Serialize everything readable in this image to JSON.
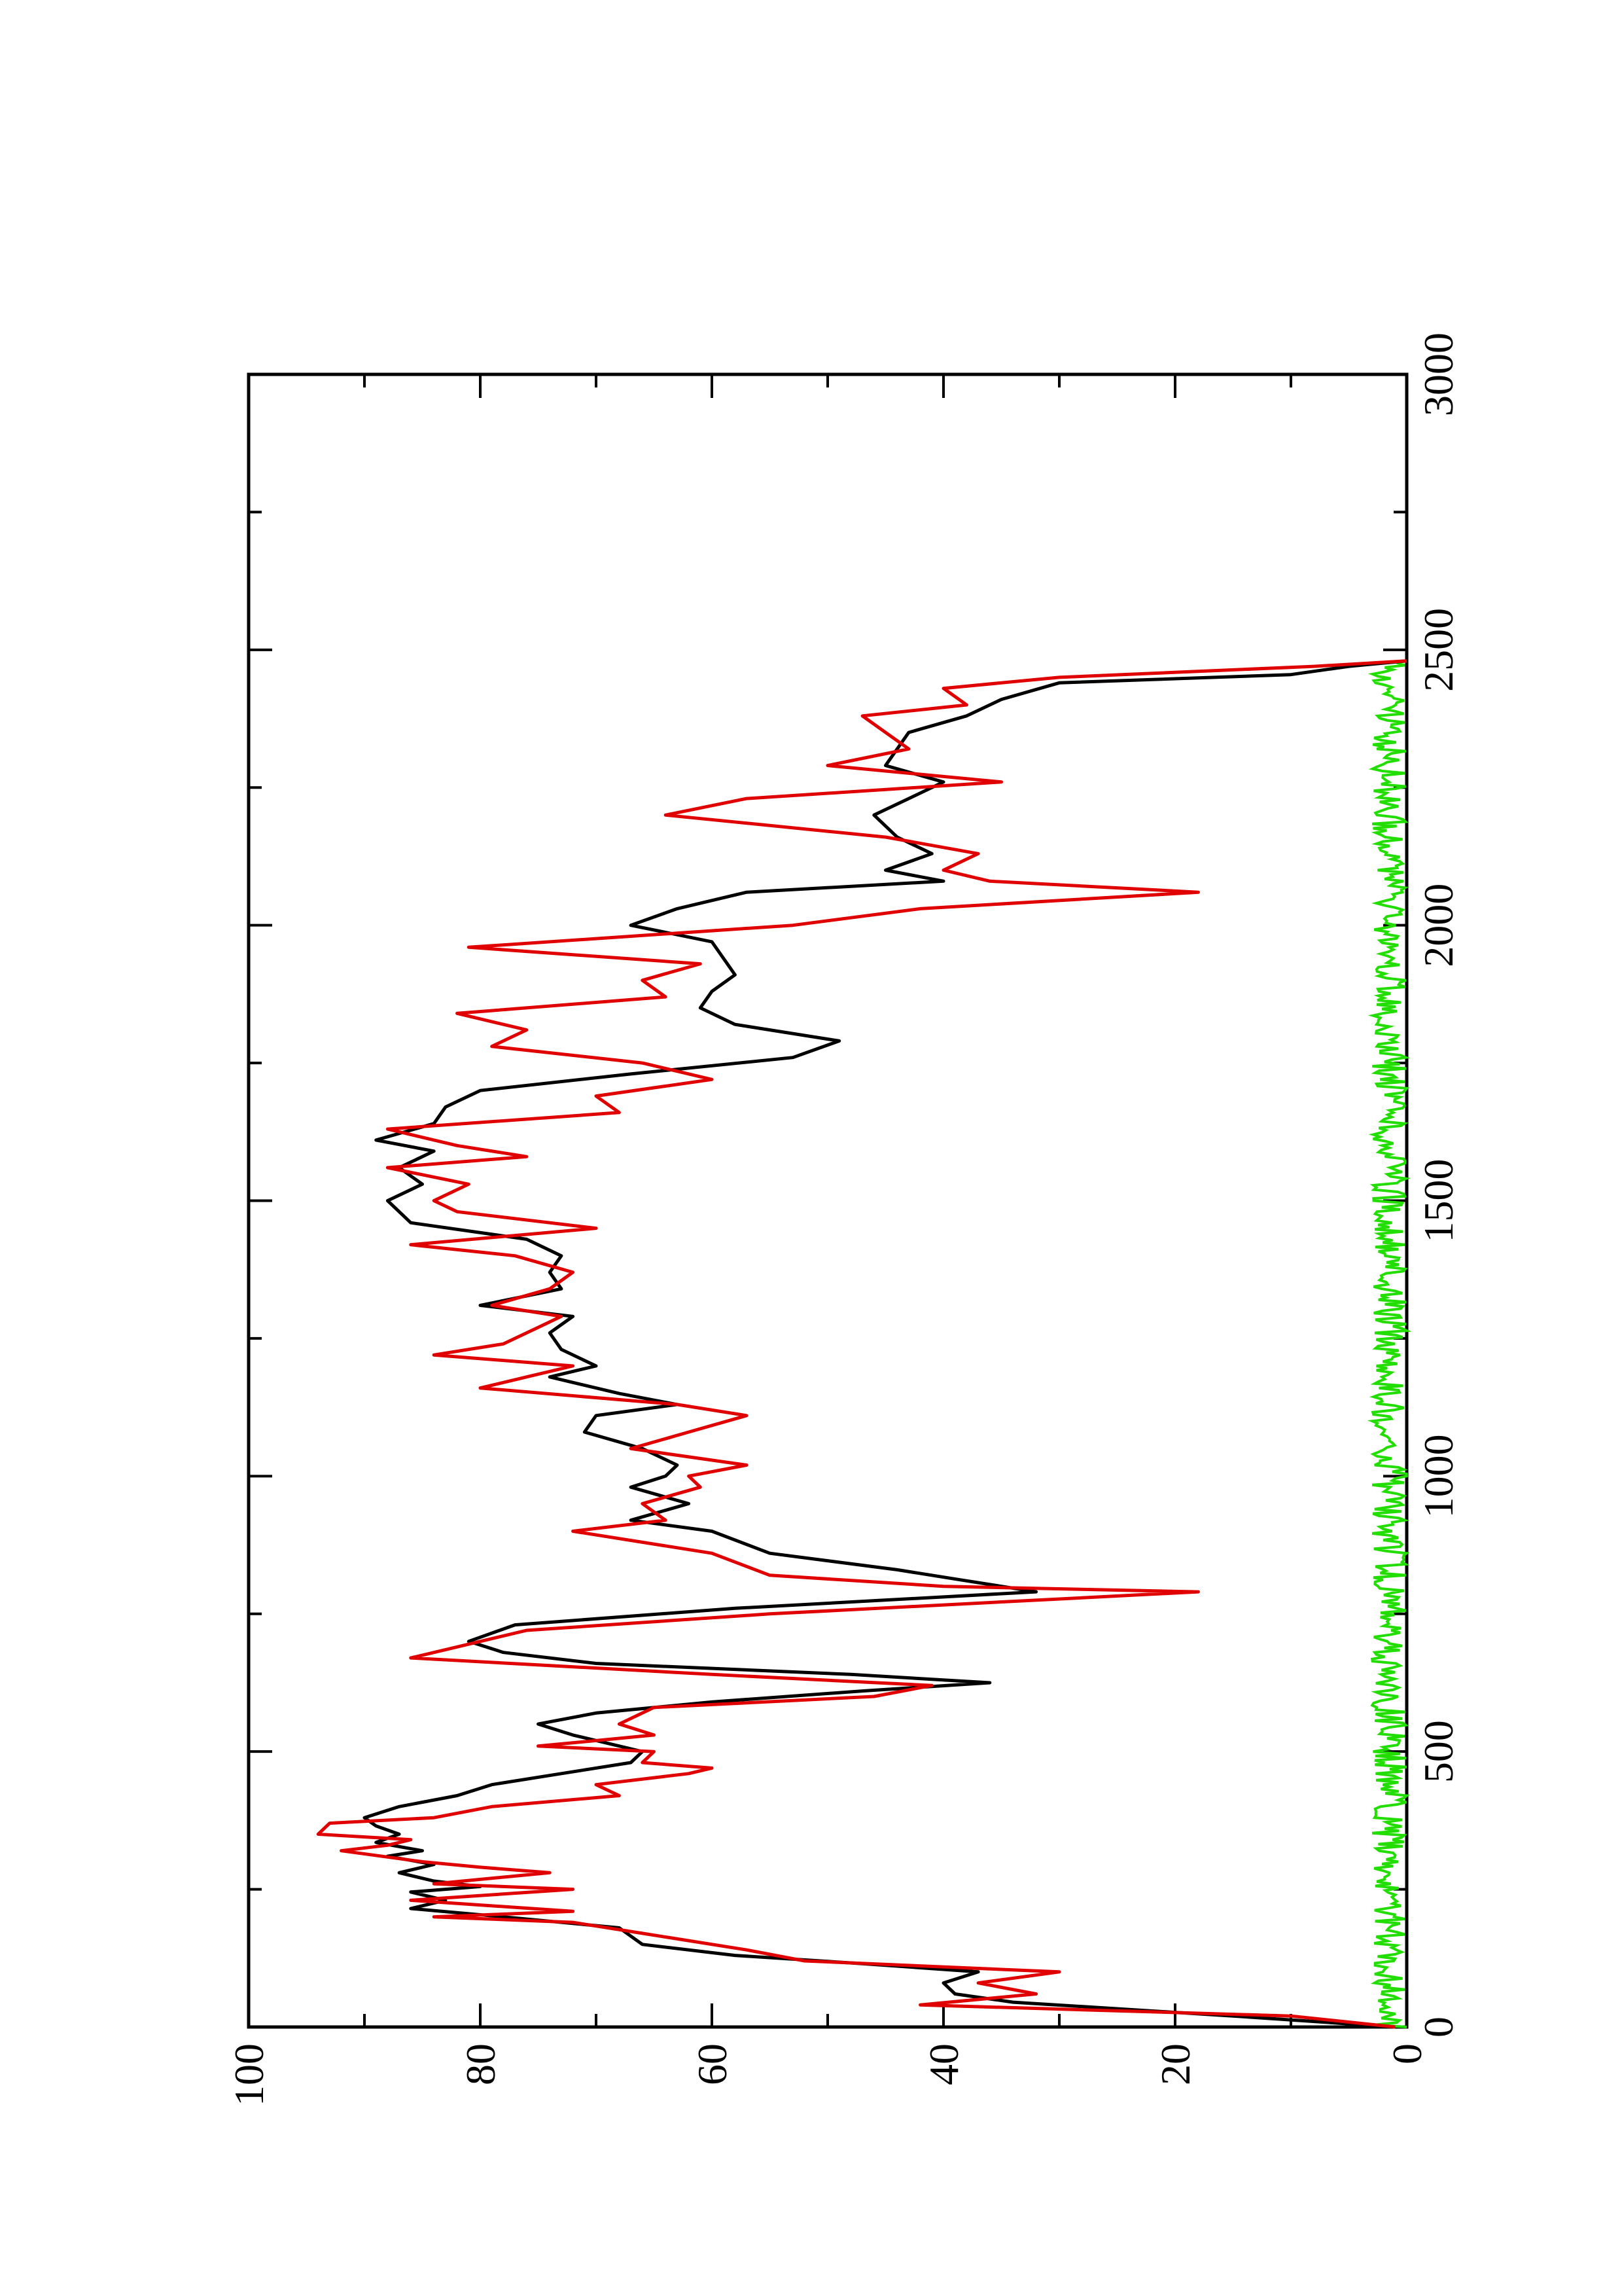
{
  "chart_data": {
    "type": "line",
    "orientation": "rotated-90-ccw",
    "title": "",
    "xlabel": "",
    "ylabel": "",
    "xlim": [
      0,
      3000
    ],
    "ylim": [
      0,
      100
    ],
    "x_ticks": [
      0,
      500,
      1000,
      1500,
      2000,
      2500,
      3000
    ],
    "x_tick_labels": [
      "0",
      "500",
      "1000",
      "1500",
      "2000",
      "2500",
      "3000"
    ],
    "y_ticks": [
      0,
      20,
      40,
      60,
      80,
      100
    ],
    "y_tick_labels": [
      "0",
      "20",
      "40",
      "60",
      "80",
      "100"
    ],
    "grid": false,
    "legend": "none",
    "colors": {
      "black": "#000000",
      "red": "#e00000",
      "green": "#22dd00"
    },
    "series": [
      {
        "color": "#000000",
        "x": [
          0,
          20,
          45,
          60,
          80,
          100,
          115,
          130,
          150,
          180,
          200,
          215,
          230,
          245,
          255,
          265,
          280,
          295,
          310,
          320,
          335,
          350,
          365,
          380,
          400,
          420,
          440,
          460,
          480,
          500,
          530,
          550,
          570,
          590,
          610,
          625,
          640,
          660,
          680,
          700,
          730,
          760,
          790,
          810,
          830,
          860,
          900,
          920,
          950,
          980,
          1000,
          1020,
          1050,
          1080,
          1110,
          1130,
          1150,
          1180,
          1200,
          1230,
          1260,
          1290,
          1310,
          1340,
          1370,
          1400,
          1430,
          1460,
          1480,
          1500,
          1530,
          1560,
          1590,
          1610,
          1640,
          1670,
          1700,
          1730,
          1760,
          1790,
          1820,
          1850,
          1880,
          1910,
          1940,
          1970,
          2000,
          2030,
          2060,
          2080,
          2100,
          2130,
          2160,
          2200,
          2230,
          2260,
          2290,
          2320,
          2350,
          2380,
          2410,
          2440,
          2455,
          2470,
          2480
        ],
        "y": [
          1,
          15,
          34,
          39,
          40,
          37,
          47,
          58,
          66,
          68,
          78,
          86,
          83,
          86,
          80,
          84,
          87,
          84,
          88,
          85,
          89,
          87,
          89,
          90,
          87,
          82,
          79,
          73,
          67,
          66,
          72,
          75,
          70,
          60,
          47,
          36,
          48,
          70,
          78,
          81,
          77,
          58,
          32,
          38,
          44,
          55,
          60,
          67,
          62,
          67,
          64,
          63,
          66,
          71,
          70,
          63,
          68,
          74,
          70,
          73,
          74,
          72,
          80,
          73,
          74,
          73,
          76,
          86,
          87,
          88,
          85,
          87,
          84,
          89,
          84,
          83,
          80,
          67,
          53,
          49,
          58,
          61,
          60,
          58,
          59,
          60,
          67,
          63,
          57,
          40,
          45,
          41,
          44,
          46,
          43,
          40,
          45,
          44,
          43,
          38,
          35,
          30,
          10,
          5,
          0
        ]
      },
      {
        "color": "#e00000",
        "x": [
          0,
          20,
          40,
          60,
          80,
          100,
          120,
          140,
          170,
          190,
          200,
          210,
          230,
          250,
          260,
          280,
          290,
          300,
          320,
          330,
          340,
          350,
          370,
          380,
          400,
          420,
          440,
          460,
          470,
          480,
          500,
          510,
          530,
          550,
          580,
          600,
          620,
          640,
          670,
          690,
          720,
          750,
          790,
          800,
          820,
          860,
          900,
          920,
          950,
          980,
          1000,
          1020,
          1050,
          1080,
          1110,
          1130,
          1160,
          1180,
          1200,
          1220,
          1240,
          1270,
          1290,
          1310,
          1340,
          1370,
          1400,
          1420,
          1450,
          1480,
          1500,
          1530,
          1560,
          1580,
          1600,
          1630,
          1660,
          1690,
          1720,
          1750,
          1780,
          1810,
          1840,
          1870,
          1900,
          1930,
          1960,
          2000,
          2030,
          2060,
          2080,
          2100,
          2130,
          2160,
          2200,
          2230,
          2260,
          2290,
          2320,
          2350,
          2380,
          2400,
          2430,
          2450,
          2470,
          2480
        ],
        "y": [
          1,
          10,
          42,
          32,
          37,
          30,
          52,
          57,
          66,
          72,
          84,
          72,
          86,
          72,
          84,
          74,
          80,
          85,
          92,
          88,
          86,
          94,
          93,
          84,
          79,
          68,
          70,
          62,
          60,
          66,
          65,
          75,
          65,
          68,
          65,
          46,
          41,
          60,
          86,
          82,
          76,
          55,
          18,
          40,
          55,
          60,
          72,
          64,
          66,
          61,
          62,
          57,
          67,
          62,
          57,
          63,
          80,
          76,
          72,
          84,
          78,
          75,
          73,
          79,
          74,
          72,
          77,
          86,
          70,
          82,
          84,
          81,
          88,
          76,
          82,
          88,
          68,
          70,
          60,
          66,
          79,
          76,
          82,
          64,
          66,
          61,
          81,
          53,
          42,
          18,
          36,
          40,
          37,
          45,
          64,
          57,
          35,
          50,
          43,
          45,
          47,
          38,
          40,
          30,
          8,
          0
        ]
      },
      {
        "color": "#22dd00",
        "x_range": [
          0,
          2480
        ],
        "y_range": [
          0,
          3
        ],
        "description_values": "noise"
      }
    ]
  }
}
